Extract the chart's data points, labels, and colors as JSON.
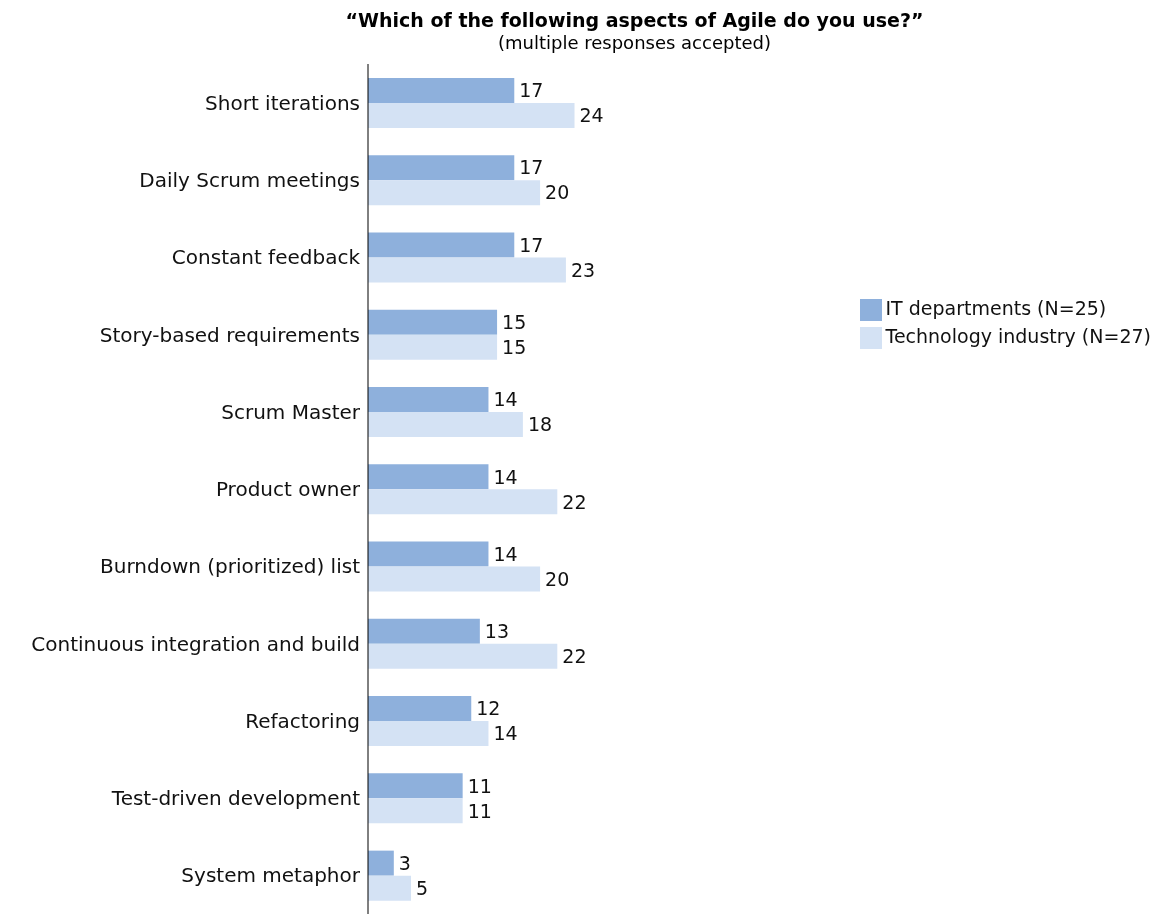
{
  "chart_data": {
    "type": "bar",
    "orientation": "horizontal",
    "title": "“Which of the following aspects of Agile do you use?”",
    "subtitle": "(multiple responses accepted)",
    "categories": [
      "Short iterations",
      "Daily Scrum meetings",
      "Constant feedback",
      "Story-based requirements",
      "Scrum Master",
      "Product owner",
      "Burndown (prioritized) list",
      "Continuous integration and build",
      "Refactoring",
      "Test-driven development",
      "System metaphor"
    ],
    "series": [
      {
        "name": "IT departments (N=25)",
        "color": "#8eb0dc",
        "values": [
          17,
          17,
          17,
          15,
          14,
          14,
          14,
          13,
          12,
          11,
          3
        ]
      },
      {
        "name": "Technology industry (N=27)",
        "color": "#d4e2f4",
        "values": [
          24,
          20,
          23,
          15,
          18,
          22,
          20,
          22,
          14,
          11,
          5
        ]
      }
    ],
    "tick_labels": "y",
    "data_labels": true,
    "legend": "right",
    "grid": false
  }
}
